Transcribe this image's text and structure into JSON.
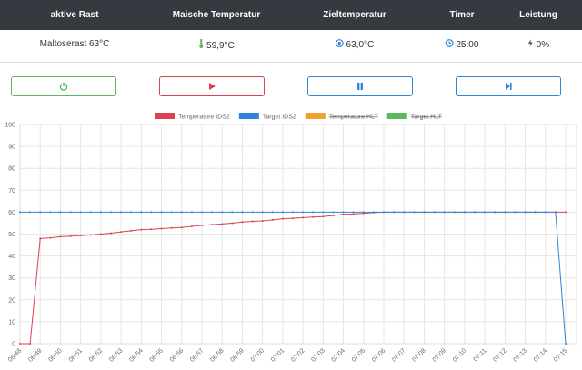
{
  "table": {
    "headers": [
      "aktive Rast",
      "Maische Temperatur",
      "Zieltemperatur",
      "Timer",
      "Leistung"
    ],
    "row": [
      "Maltoserast 63°C",
      "59,9°C",
      "63,0°C",
      "25:00",
      "0%"
    ]
  },
  "chart_data": {
    "type": "line",
    "categories": [
      "06:48",
      null,
      "06:49",
      null,
      "06:50",
      null,
      "06:51",
      null,
      "06:52",
      null,
      "06:53",
      null,
      "06:54",
      null,
      "06:55",
      null,
      "06:56",
      null,
      "06:57",
      null,
      "06:58",
      null,
      "06:59",
      null,
      "07:00",
      null,
      "07:01",
      null,
      "07:02",
      null,
      "07:03",
      null,
      "07:04",
      null,
      "07:05",
      null,
      "07:06",
      null,
      "07:07",
      null,
      "07:08",
      null,
      "07:09",
      null,
      "07:10",
      null,
      "07:11",
      null,
      "07:12",
      null,
      "07:13",
      null,
      "07:14",
      null,
      "07:15"
    ],
    "series": [
      {
        "name": "Temperature IDS2",
        "color": "#d9434f",
        "values": [
          0,
          0,
          48,
          48.3,
          48.8,
          49,
          49.3,
          49.6,
          50,
          50.4,
          51,
          51.5,
          52,
          52.2,
          52.5,
          52.8,
          53,
          53.5,
          54,
          54.3,
          54.6,
          55,
          55.5,
          55.8,
          56,
          56.5,
          57,
          57.2,
          57.5,
          57.8,
          58,
          58.5,
          59,
          59.2,
          59.5,
          59.8,
          60,
          60,
          60,
          60,
          60,
          60,
          60,
          60,
          60,
          60,
          60,
          60,
          60,
          60,
          60,
          60,
          60,
          60,
          60
        ]
      },
      {
        "name": "Target IDS2",
        "color": "#2f86d8",
        "values": [
          60,
          60,
          60,
          60,
          60,
          60,
          60,
          60,
          60,
          60,
          60,
          60,
          60,
          60,
          60,
          60,
          60,
          60,
          60,
          60,
          60,
          60,
          60,
          60,
          60,
          60,
          60,
          60,
          60,
          60,
          60,
          60,
          60,
          60,
          60,
          60,
          60,
          60,
          60,
          60,
          60,
          60,
          60,
          60,
          60,
          60,
          60,
          60,
          60,
          60,
          60,
          60,
          60,
          60,
          0
        ]
      },
      {
        "name": "Temperature HLT",
        "color": "#f0a22e",
        "hidden": true
      },
      {
        "name": "Target HLT",
        "color": "#5cb85c",
        "hidden": true
      }
    ],
    "ylim": [
      0,
      100
    ],
    "yticks": [
      0,
      10,
      20,
      30,
      40,
      50,
      60,
      70,
      80,
      90,
      100
    ],
    "grid": true
  }
}
